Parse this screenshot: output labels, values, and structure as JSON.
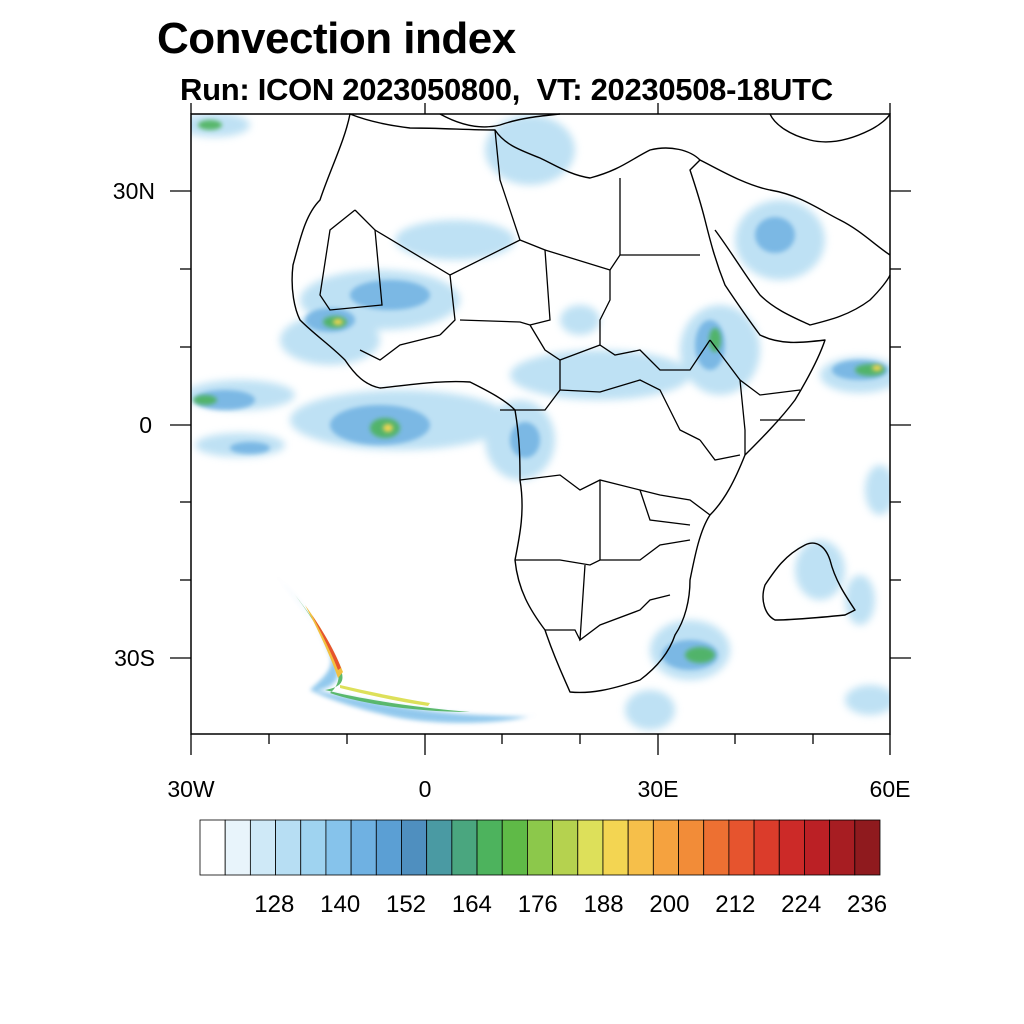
{
  "title": "Convection index",
  "subtitle": "Run: ICON 2023050800,  VT: 20230508-18UTC",
  "map": {
    "lon_range": [
      -30,
      60
    ],
    "lat_range": [
      -40,
      40
    ],
    "x_ticks": [
      {
        "lon": -30,
        "label": "30W"
      },
      {
        "lon": 0,
        "label": "0"
      },
      {
        "lon": 30,
        "label": "30E"
      },
      {
        "lon": 60,
        "label": "60E"
      }
    ],
    "y_ticks": [
      {
        "lat": 30,
        "label": "30N"
      },
      {
        "lat": 0,
        "label": "0"
      },
      {
        "lat": -30,
        "label": "30S"
      }
    ]
  },
  "colorbar": {
    "colors": [
      "#ffffff",
      "#e8f4fb",
      "#cfe9f7",
      "#b7def3",
      "#9fd3f0",
      "#86c3eb",
      "#6fb1e2",
      "#5b9fd4",
      "#4f8fbf",
      "#4a9aa3",
      "#4aa67f",
      "#4db35d",
      "#5fba47",
      "#8cc84b",
      "#b5d24f",
      "#dde05a",
      "#f3d552",
      "#f6bf4a",
      "#f5a23f",
      "#f28c38",
      "#ed7032",
      "#e6542e",
      "#db3c2b",
      "#cc2a28",
      "#bb2025",
      "#a71d22",
      "#8f1a1e"
    ],
    "labels": [
      "128",
      "140",
      "152",
      "164",
      "176",
      "188",
      "200",
      "212",
      "224",
      "236"
    ],
    "label_values": [
      128,
      140,
      152,
      164,
      176,
      188,
      200,
      212,
      224,
      236
    ]
  }
}
